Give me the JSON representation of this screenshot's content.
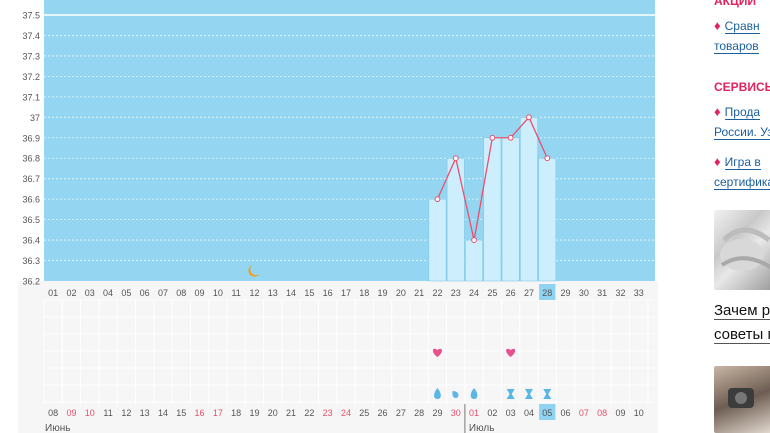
{
  "chart_data": {
    "type": "bar",
    "ylim": [
      36.2,
      37.5
    ],
    "y_ticks": [
      "36.2",
      "36.3",
      "36.4",
      "36.5",
      "36.6",
      "36.7",
      "36.8",
      "36.9",
      "37",
      "37.1",
      "37.2",
      "37.3",
      "37.4",
      "37.5"
    ],
    "cycle_days": [
      "01",
      "02",
      "03",
      "04",
      "05",
      "06",
      "07",
      "08",
      "09",
      "10",
      "11",
      "12",
      "13",
      "14",
      "15",
      "16",
      "17",
      "18",
      "19",
      "20",
      "21",
      "22",
      "23",
      "24",
      "25",
      "26",
      "27",
      "28",
      "29",
      "30",
      "31",
      "32",
      "33"
    ],
    "current_day": "28",
    "series": [
      {
        "x": [
          "22",
          "23",
          "24",
          "25",
          "26",
          "27",
          "28"
        ],
        "values": [
          36.6,
          36.8,
          36.4,
          36.9,
          36.9,
          37.0,
          36.8
        ]
      }
    ],
    "dates": [
      "08",
      "09",
      "10",
      "11",
      "12",
      "13",
      "14",
      "15",
      "16",
      "17",
      "18",
      "19",
      "20",
      "21",
      "22",
      "23",
      "24",
      "25",
      "26",
      "27",
      "28",
      "29",
      "30",
      "01",
      "02",
      "03",
      "04",
      "05",
      "06",
      "07",
      "08",
      "09",
      "10"
    ],
    "weekend_dates": [
      "09",
      "10",
      "16",
      "17",
      "23",
      "24",
      "30",
      "01",
      "07",
      "08"
    ],
    "current_date": "05",
    "months": [
      "Июнь",
      "Июль"
    ],
    "moon_marker": {
      "day": "12",
      "icon": "crescent-moon-icon",
      "color": "#f39c12"
    },
    "heart_markers": {
      "days": [
        "22",
        "26"
      ],
      "icon": "heart-icon",
      "color": "#e8508e"
    },
    "symptom_markers": [
      {
        "day": "22",
        "icon": "drop-icon"
      },
      {
        "day": "23",
        "icon": "small-drop-icon"
      },
      {
        "day": "24",
        "icon": "drop-icon"
      },
      {
        "day": "26",
        "icon": "hourglass-icon"
      },
      {
        "day": "27",
        "icon": "hourglass-icon"
      },
      {
        "day": "28",
        "icon": "hourglass-icon"
      }
    ],
    "colors": {
      "plot_bg": "#94d6f1",
      "bar_fill": "#cdeefd",
      "bar_stroke": "#7fc8e9",
      "line": "#e8506e",
      "highlight_cell": "#8fd3f0",
      "weekend": "#e8506e",
      "lower_bg": "#f6f6f6"
    }
  },
  "sidebar": {
    "heading_promos": "АКЦИИ",
    "promo_item_1": "Сравн",
    "promo_item_1_cont": "товаров",
    "heading_services": "СЕРВИСЫ",
    "service_item_1": "Прода",
    "service_item_1_cont": "России. Уз",
    "service_item_2": "Игра в",
    "service_item_2_cont": "сертифика",
    "article_1_line1": "Зачем ре",
    "article_1_line2": "советы п",
    "icon_gem": "diamond-icon"
  }
}
